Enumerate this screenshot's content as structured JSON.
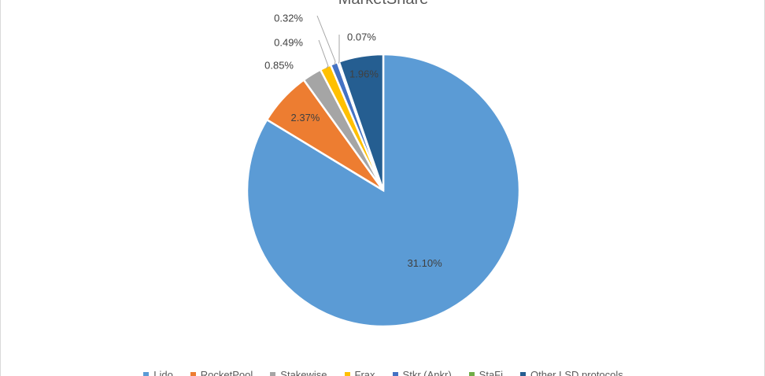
{
  "chart_data": {
    "type": "pie",
    "title": "MarketShare",
    "slices": [
      {
        "name": "Lido",
        "value": 31.1,
        "label": "31.10%",
        "color": "#5b9bd5"
      },
      {
        "name": "RocketPool",
        "value": 2.37,
        "label": "2.37%",
        "color": "#ed7d31"
      },
      {
        "name": "Stakewise",
        "value": 0.85,
        "label": "0.85%",
        "color": "#a5a5a5"
      },
      {
        "name": "Frax",
        "value": 0.49,
        "label": "0.49%",
        "color": "#ffc000"
      },
      {
        "name": "Stkr (Ankr)",
        "value": 0.32,
        "label": "0.32%",
        "color": "#4472c4"
      },
      {
        "name": "StaFi",
        "value": 0.07,
        "label": "0.07%",
        "color": "#70ad47"
      },
      {
        "name": "Other LSD protocols",
        "value": 1.96,
        "label": "1.96%",
        "color": "#255e91"
      }
    ],
    "legend_position": "bottom"
  }
}
